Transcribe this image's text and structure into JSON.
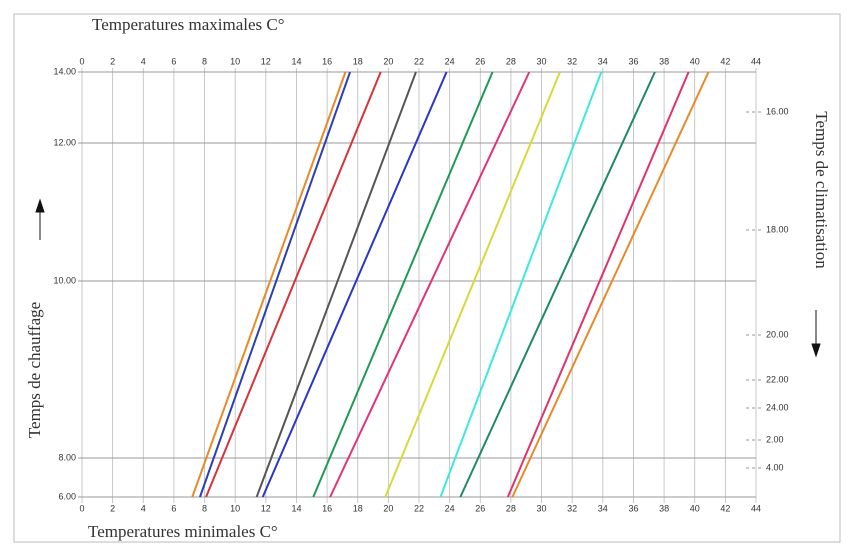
{
  "chart_data": {
    "type": "nomogram",
    "title": "Temperatures maximales C°",
    "xlabel": "Temperatures minimales C°",
    "ylabel": "Temps de chauffage",
    "y2label": "Temps de climatisation",
    "xlim": [
      0,
      44
    ],
    "xticks": [
      0,
      2,
      4,
      6,
      8,
      10,
      12,
      14,
      16,
      18,
      20,
      22,
      24,
      26,
      28,
      30,
      32,
      34,
      36,
      38,
      40,
      42,
      44
    ],
    "ylim": [
      6,
      14
    ],
    "yticks": [
      {
        "value": 14,
        "label": "14.00"
      },
      {
        "value": 12,
        "label": "12.00"
      },
      {
        "value": 10,
        "label": "10.00"
      },
      {
        "value": 8,
        "label": "8.00"
      },
      {
        "value": 6,
        "label": "6.00"
      }
    ],
    "y2ticks": [
      {
        "value": 16,
        "label": "16.00"
      },
      {
        "value": 18,
        "label": "18.00"
      },
      {
        "value": 20,
        "label": "20.00"
      },
      {
        "value": 22,
        "label": "22.00"
      },
      {
        "value": 24,
        "label": "24.00"
      },
      {
        "value": 2,
        "label": "2.00"
      },
      {
        "value": 4,
        "label": "4.00"
      }
    ],
    "grid": true,
    "series": [
      {
        "color": "#e8892a",
        "x": [
          7.2,
          17.2
        ],
        "y": [
          6,
          14
        ]
      },
      {
        "color": "#2a3fb8",
        "x": [
          7.7,
          17.5
        ],
        "y": [
          6,
          14
        ]
      },
      {
        "color": "#d8323a",
        "x": [
          8.1,
          19.5
        ],
        "y": [
          6,
          14
        ]
      },
      {
        "color": "#555555",
        "x": [
          11.4,
          21.8
        ],
        "y": [
          6,
          14
        ]
      },
      {
        "color": "#2b35c8",
        "x": [
          11.8,
          23.8
        ],
        "y": [
          6,
          14
        ]
      },
      {
        "color": "#1f9a55",
        "x": [
          15.1,
          26.8
        ],
        "y": [
          6,
          14
        ]
      },
      {
        "color": "#e0337a",
        "x": [
          16.2,
          29.2
        ],
        "y": [
          6,
          14
        ]
      },
      {
        "color": "#d8d83a",
        "x": [
          19.8,
          31.2
        ],
        "y": [
          6,
          14
        ]
      },
      {
        "color": "#3ee8e0",
        "x": [
          23.4,
          33.9
        ],
        "y": [
          6,
          14
        ]
      },
      {
        "color": "#1f8a60",
        "x": [
          24.7,
          37.4
        ],
        "y": [
          6,
          14
        ]
      },
      {
        "color": "#e0336a",
        "x": [
          27.8,
          39.6
        ],
        "y": [
          6,
          14
        ]
      },
      {
        "color": "#e8892a",
        "x": [
          28.1,
          40.9
        ],
        "y": [
          6,
          14
        ]
      }
    ]
  }
}
